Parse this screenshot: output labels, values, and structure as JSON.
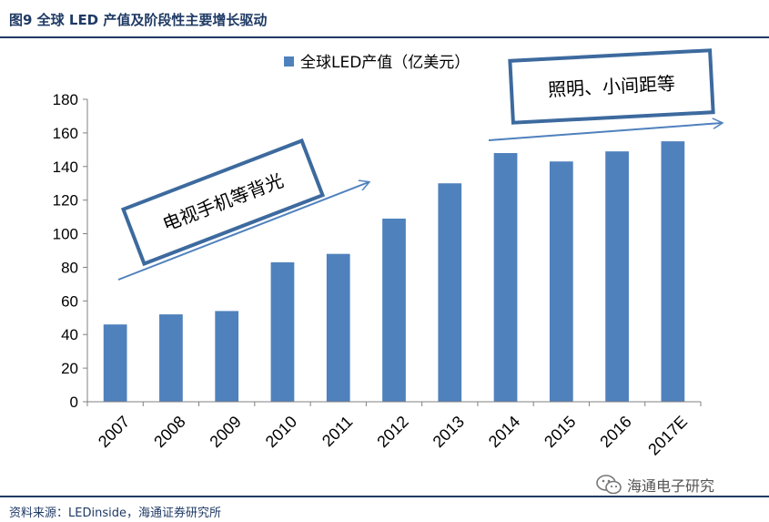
{
  "figure": {
    "title": "图9  全球 LED 产值及阶段性主要增长驱动",
    "source": "资料来源：LEDinside，海通证券研究所",
    "watermark": "海通电子研究",
    "watermark_icon": "wechat-icon"
  },
  "chart_data": {
    "type": "bar",
    "title": "",
    "xlabel": "",
    "ylabel": "",
    "categories": [
      "2007",
      "2008",
      "2009",
      "2010",
      "2011",
      "2012",
      "2013",
      "2014",
      "2015",
      "2016",
      "2017E"
    ],
    "series": [
      {
        "name": "全球LED产值（亿美元）",
        "values": [
          46,
          52,
          54,
          83,
          88,
          109,
          130,
          148,
          143,
          149,
          155
        ]
      }
    ],
    "ylim": [
      0,
      180
    ],
    "yticks": [
      0,
      20,
      40,
      60,
      80,
      100,
      120,
      140,
      160,
      180
    ],
    "grid": false,
    "legend_position": "top-center",
    "bar_color": "#4f81bd",
    "annotations": [
      {
        "text": "电视手机等背光",
        "from_category": "2007",
        "to_category": "2012"
      },
      {
        "text": "照明、小间距等",
        "from_category": "2013",
        "to_category": "2017E"
      }
    ]
  }
}
